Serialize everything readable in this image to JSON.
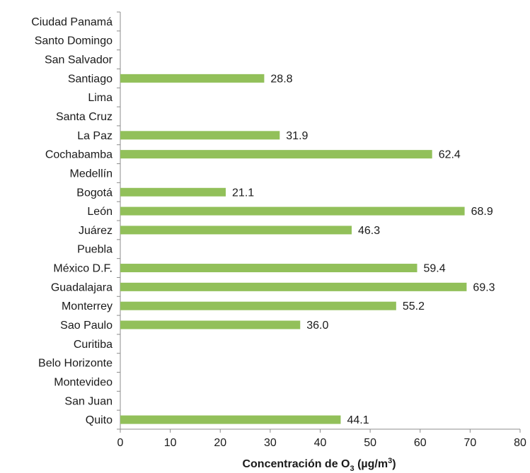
{
  "chart_data": {
    "type": "bar",
    "orientation": "horizontal",
    "categories": [
      "Ciudad Panamá",
      "Santo Domingo",
      "San Salvador",
      "Santiago",
      "Lima",
      "Santa Cruz",
      "La Paz",
      "Cochabamba",
      "Medellín",
      "Bogotá",
      "León",
      "Juárez",
      "Puebla",
      "México D.F.",
      "Guadalajara",
      "Monterrey",
      "Sao Paulo",
      "Curitiba",
      "Belo Horizonte",
      "Montevideo",
      "San Juan",
      "Quito"
    ],
    "values": [
      null,
      null,
      null,
      28.8,
      null,
      null,
      31.9,
      62.4,
      null,
      21.1,
      68.9,
      46.3,
      null,
      59.4,
      69.3,
      55.2,
      36.0,
      null,
      null,
      null,
      null,
      44.1
    ],
    "value_labels": [
      "",
      "",
      "",
      "28.8",
      "",
      "",
      "31.9",
      "62.4",
      "",
      "21.1",
      "68.9",
      "46.3",
      "",
      "59.4",
      "69.3",
      "55.2",
      "36.0",
      "",
      "",
      "",
      "",
      "44.1"
    ],
    "xlabel_main": "Concentración de O",
    "xlabel_sub": "3",
    "xlabel_unit": " (µg/m",
    "xlabel_sup": "3",
    "xlabel_close": ")",
    "xlim": [
      0,
      80
    ],
    "xticks": [
      0,
      10,
      20,
      30,
      40,
      50,
      60,
      70,
      80
    ],
    "xtick_labels": [
      "0",
      "10",
      "20",
      "30",
      "40",
      "50",
      "60",
      "70",
      "80"
    ],
    "grid": false,
    "bar_color": "#92c05a",
    "axis_color": "#8c8c8c"
  }
}
